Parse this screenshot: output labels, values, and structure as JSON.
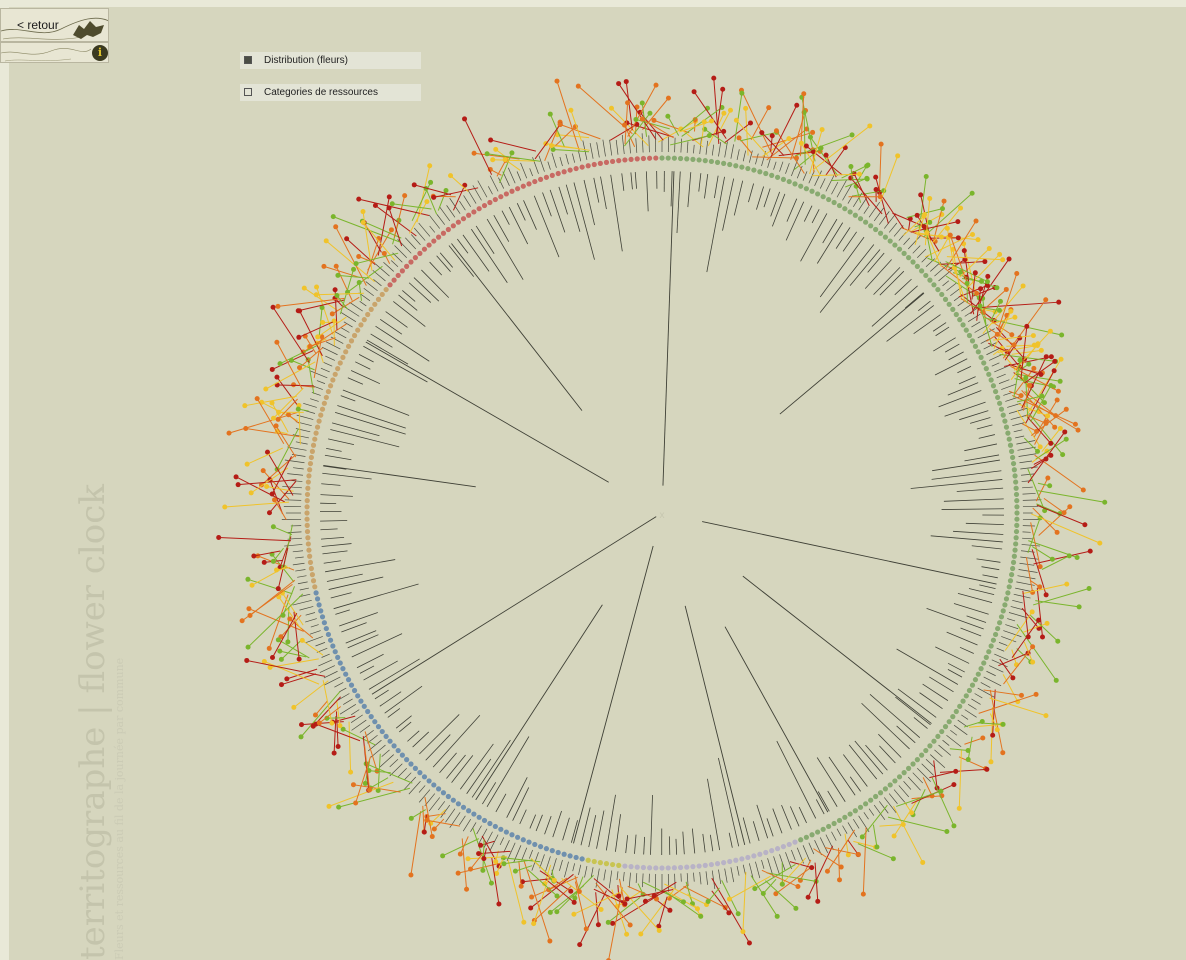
{
  "nav": {
    "back_label": "< retour",
    "info_icon": "i"
  },
  "toggles": [
    {
      "label": "Distribution (fleurs)",
      "checked": true
    },
    {
      "label": "Categories de ressources",
      "checked": false
    }
  ],
  "title": {
    "main": "territographe | flower clock",
    "sub": "Fleurs et ressources au fil de la journée par commune"
  },
  "colors": {
    "background": "#d6d6be",
    "ring": {
      "red": "#c86a63",
      "tan": "#c9a46b",
      "blue": "#6f90ae",
      "yellow": "#c8c451",
      "lavender": "#b8b2c6",
      "green": "#88aa70"
    },
    "flowers": [
      "#f0c32a",
      "#e3731f",
      "#7ab52c",
      "#b51c16"
    ]
  },
  "chart_data": {
    "type": "radial",
    "dot_count": 360,
    "segments": [
      {
        "start": 0,
        "end": 158,
        "color": "#88aa70"
      },
      {
        "start": 158,
        "end": 187,
        "color": "#b8b2c6"
      },
      {
        "start": 187,
        "end": 193,
        "color": "#c8c451"
      },
      {
        "start": 193,
        "end": 258,
        "color": "#6f90ae"
      },
      {
        "start": 258,
        "end": 310,
        "color": "#c9a46b"
      },
      {
        "start": 310,
        "end": 360,
        "color": "#c86a63"
      }
    ],
    "long_spokes": [
      {
        "angle": 2,
        "value": 0.92
      },
      {
        "angle": 102,
        "value": 0.88
      },
      {
        "angle": 128,
        "value": 0.7
      },
      {
        "angle": 151,
        "value": 0.62
      },
      {
        "angle": 166,
        "value": 0.72
      },
      {
        "angle": 195,
        "value": 0.9
      },
      {
        "angle": 213,
        "value": 0.68
      },
      {
        "angle": 238,
        "value": 0.98
      },
      {
        "angle": 300,
        "value": 0.82
      },
      {
        "angle": 322,
        "value": 0.62
      },
      {
        "angle": 50,
        "value": 0.55
      },
      {
        "angle": 278,
        "value": 0.45
      }
    ]
  }
}
